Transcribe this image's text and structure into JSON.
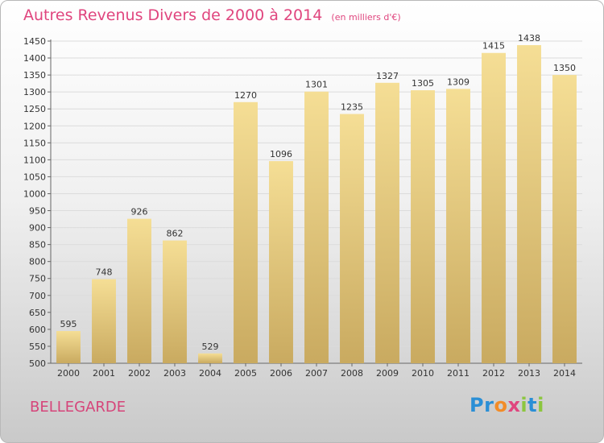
{
  "chart_data": {
    "type": "bar",
    "title": "Autres Revenus Divers de 2000 à 2014",
    "subtitle": "(en milliers d'€)",
    "categories": [
      "2000",
      "2001",
      "2002",
      "2003",
      "2004",
      "2005",
      "2006",
      "2007",
      "2008",
      "2009",
      "2010",
      "2011",
      "2012",
      "2013",
      "2014"
    ],
    "values": [
      595,
      748,
      926,
      862,
      529,
      1270,
      1096,
      1301,
      1235,
      1327,
      1305,
      1309,
      1415,
      1438,
      1350
    ],
    "ylim": [
      500,
      1450
    ],
    "yticks": [
      500,
      550,
      600,
      650,
      700,
      750,
      800,
      850,
      900,
      950,
      1000,
      1050,
      1100,
      1150,
      1200,
      1250,
      1300,
      1350,
      1400,
      1450
    ],
    "xlabel": "",
    "ylabel": "",
    "grid": true,
    "legend": "none",
    "bar_color": "#e8cf82"
  },
  "footer": {
    "commune": "BELLEGARDE"
  },
  "logo": {
    "letters": [
      "P",
      "r",
      "o",
      "x",
      "i",
      "t",
      "i"
    ],
    "colors": [
      "#2a8fd6",
      "#2a8fd6",
      "#f28c28",
      "#e0457e",
      "#8cc63f",
      "#2a8fd6",
      "#8cc63f"
    ]
  }
}
